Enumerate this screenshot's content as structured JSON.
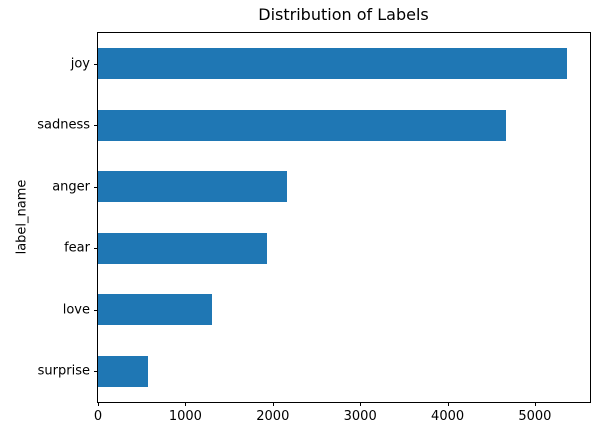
{
  "chart_data": {
    "type": "bar",
    "orientation": "horizontal",
    "title": "Distribution of Labels",
    "xlabel": "",
    "ylabel": "label_name",
    "categories": [
      "joy",
      "sadness",
      "anger",
      "fear",
      "love",
      "surprise"
    ],
    "values": [
      5362,
      4666,
      2159,
      1937,
      1304,
      572
    ],
    "xlim": [
      0,
      5630
    ],
    "xticks": [
      0,
      1000,
      2000,
      3000,
      4000,
      5000
    ],
    "bar_fraction": 0.5,
    "grid": false,
    "legend": "none",
    "colors": {
      "bar": "#1f77b4",
      "axis": "#000000",
      "text": "#000000",
      "background": "#ffffff"
    }
  }
}
